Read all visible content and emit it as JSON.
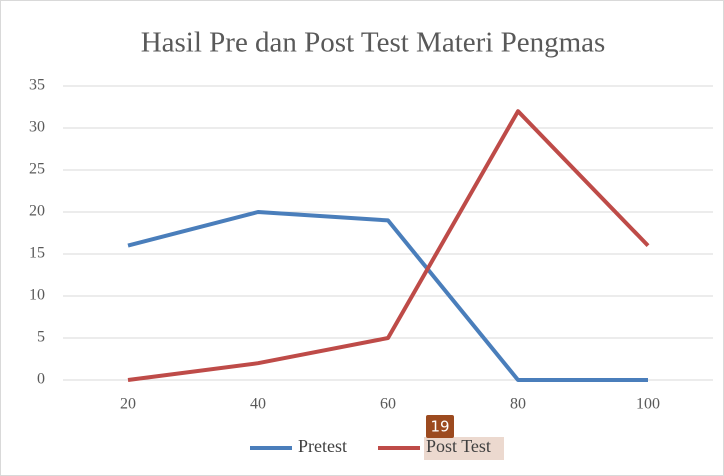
{
  "chart_data": {
    "type": "line",
    "title": "Hasil Pre dan Post Test Materi Pengmas",
    "categories": [
      "20",
      "40",
      "60",
      "80",
      "100"
    ],
    "series": [
      {
        "name": "Pretest",
        "color": "#4a7ebb",
        "values": [
          16,
          20,
          19,
          0,
          0
        ]
      },
      {
        "name": "Post Test",
        "color": "#be4b48",
        "values": [
          0,
          2,
          5,
          32,
          16
        ]
      }
    ],
    "ylim": [
      0,
      35
    ],
    "yticks": [
      0,
      5,
      10,
      15,
      20,
      25,
      30,
      35
    ],
    "grid": true,
    "legend": "bottom",
    "annotation": "19"
  }
}
